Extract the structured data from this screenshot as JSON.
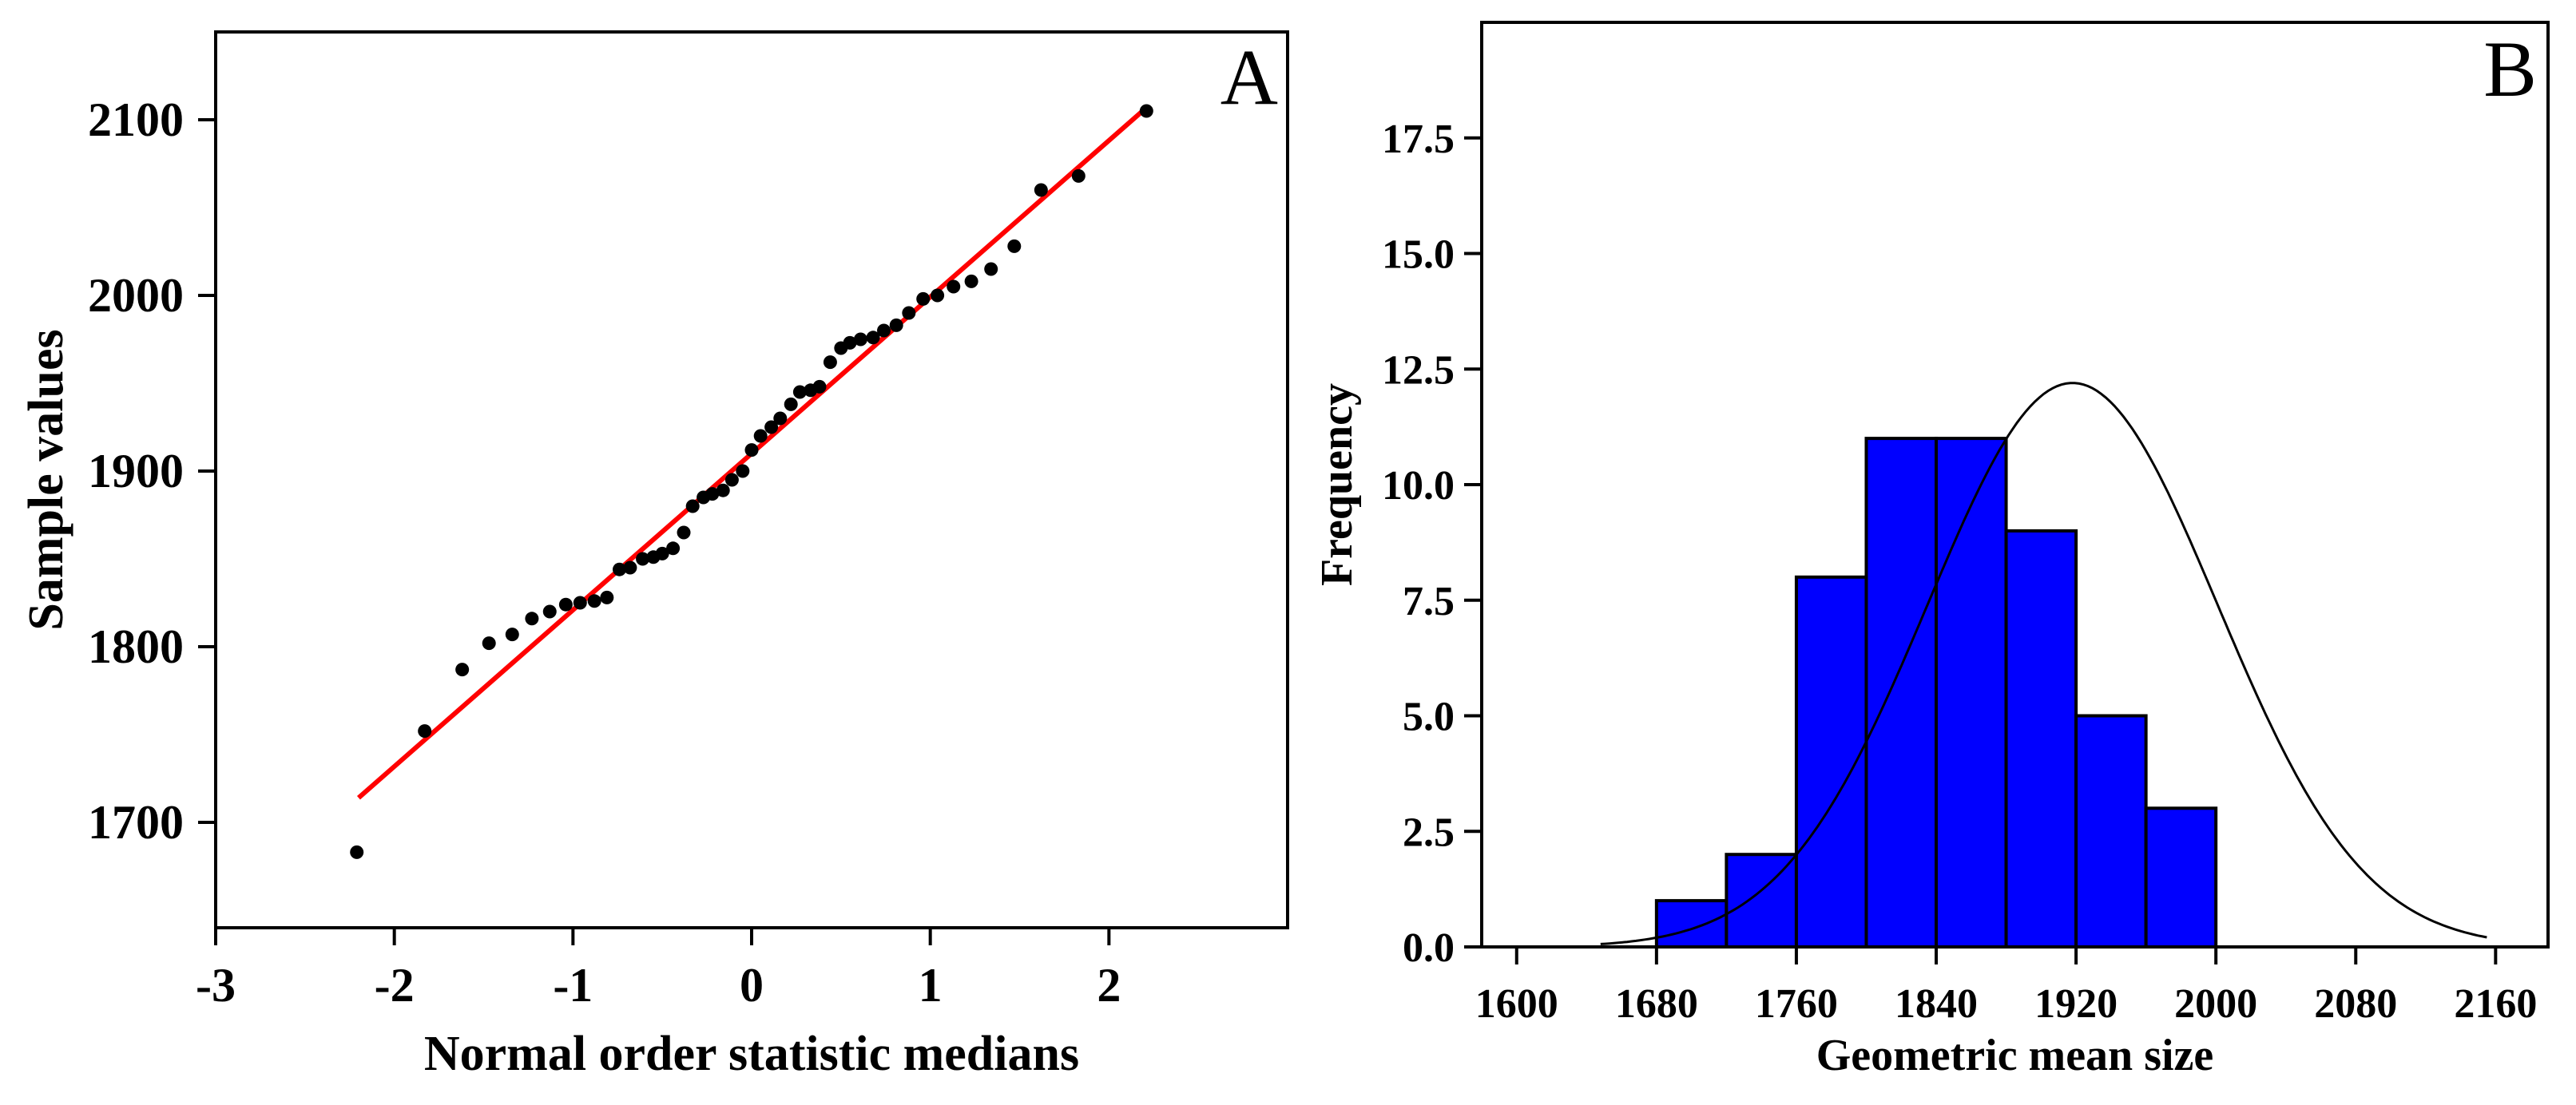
{
  "chart_data": [
    {
      "type": "scatter",
      "panel": "A",
      "xlabel": "Normal order statistic medians",
      "ylabel": "Sample values",
      "xlim": [
        -3,
        3
      ],
      "ylim": [
        1640,
        2150
      ],
      "xticks": [
        -3,
        -2,
        -1,
        0,
        1,
        2
      ],
      "yticks": [
        1700,
        1800,
        1900,
        2000,
        2100
      ],
      "fit_line": {
        "color": "#ff0000",
        "x": [
          -2.2,
          2.2
        ],
        "y": [
          1714,
          2106
        ]
      },
      "series": [
        {
          "color": "#000000",
          "points": [
            [
              -2.21,
              1683
            ],
            [
              -1.83,
              1752
            ],
            [
              -1.62,
              1787
            ],
            [
              -1.47,
              1802
            ],
            [
              -1.34,
              1807
            ],
            [
              -1.23,
              1816
            ],
            [
              -1.13,
              1820
            ],
            [
              -1.04,
              1824
            ],
            [
              -0.96,
              1825
            ],
            [
              -0.88,
              1826
            ],
            [
              -0.81,
              1828
            ],
            [
              -0.74,
              1844
            ],
            [
              -0.68,
              1845
            ],
            [
              -0.61,
              1850
            ],
            [
              -0.55,
              1851
            ],
            [
              -0.5,
              1853
            ],
            [
              -0.44,
              1856
            ],
            [
              -0.38,
              1865
            ],
            [
              -0.33,
              1880
            ],
            [
              -0.27,
              1885
            ],
            [
              -0.22,
              1887
            ],
            [
              -0.16,
              1889
            ],
            [
              -0.11,
              1895
            ],
            [
              -0.05,
              1900
            ],
            [
              0.0,
              1912
            ],
            [
              0.05,
              1920
            ],
            [
              0.11,
              1925
            ],
            [
              0.16,
              1930
            ],
            [
              0.22,
              1938
            ],
            [
              0.27,
              1945
            ],
            [
              0.33,
              1946
            ],
            [
              0.38,
              1948
            ],
            [
              0.44,
              1962
            ],
            [
              0.5,
              1970
            ],
            [
              0.55,
              1973
            ],
            [
              0.61,
              1975
            ],
            [
              0.68,
              1976
            ],
            [
              0.74,
              1980
            ],
            [
              0.81,
              1983
            ],
            [
              0.88,
              1990
            ],
            [
              0.96,
              1998
            ],
            [
              1.04,
              2000
            ],
            [
              1.13,
              2005
            ],
            [
              1.23,
              2008
            ],
            [
              1.34,
              2015
            ],
            [
              1.47,
              2028
            ],
            [
              1.62,
              2060
            ],
            [
              1.83,
              2068
            ],
            [
              2.21,
              2105
            ]
          ]
        }
      ],
      "grid": false
    },
    {
      "type": "bar",
      "panel": "B",
      "xlabel": "Geometric mean size",
      "ylabel": "Frequency",
      "xlim": [
        1580,
        2190
      ],
      "ylim": [
        0,
        20
      ],
      "xticks": [
        1600,
        1680,
        1760,
        1840,
        1920,
        2000,
        2080,
        2160
      ],
      "yticks": [
        "0.0",
        "2.5",
        "5.0",
        "7.5",
        "10.0",
        "12.5",
        "15.0",
        "17.5"
      ],
      "bins": [
        {
          "start": 1680,
          "end": 1720,
          "value": 1
        },
        {
          "start": 1720,
          "end": 1760,
          "value": 2
        },
        {
          "start": 1760,
          "end": 1800,
          "value": 8
        },
        {
          "start": 1800,
          "end": 1840,
          "value": 11
        },
        {
          "start": 1840,
          "end": 1880,
          "value": 11
        },
        {
          "start": 1880,
          "end": 1920,
          "value": 9
        },
        {
          "start": 1920,
          "end": 1960,
          "value": 5
        },
        {
          "start": 1960,
          "end": 2000,
          "value": 3
        }
      ],
      "bar_color": "#0000ff",
      "normal_curve": {
        "mean": 1918,
        "peak": 12.2,
        "sd": 83,
        "x_range": [
          1648,
          2155
        ],
        "color": "#000000"
      },
      "grid": false
    }
  ]
}
